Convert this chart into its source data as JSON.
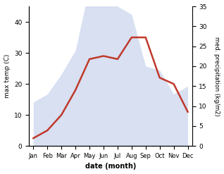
{
  "months": [
    "Jan",
    "Feb",
    "Mar",
    "Apr",
    "May",
    "Jun",
    "Jul",
    "Aug",
    "Sep",
    "Oct",
    "Nov",
    "Dec"
  ],
  "max_temp": [
    2.5,
    5,
    10,
    18,
    28,
    29,
    28,
    35,
    35,
    22,
    20,
    11
  ],
  "precipitation": [
    11,
    13,
    18,
    24,
    40,
    37,
    35,
    33,
    20,
    19,
    13,
    15
  ],
  "temp_color": "#c0392b",
  "precip_fill_color": "#b8c8e8",
  "temp_ylim": [
    0,
    45
  ],
  "precip_ylim": [
    0,
    35
  ],
  "temp_yticks": [
    0,
    10,
    20,
    30,
    40
  ],
  "precip_yticks": [
    0,
    5,
    10,
    15,
    20,
    25,
    30,
    35
  ],
  "xlabel": "date (month)",
  "ylabel_left": "max temp (C)",
  "ylabel_right": "med. precipitation (kg/m2)"
}
